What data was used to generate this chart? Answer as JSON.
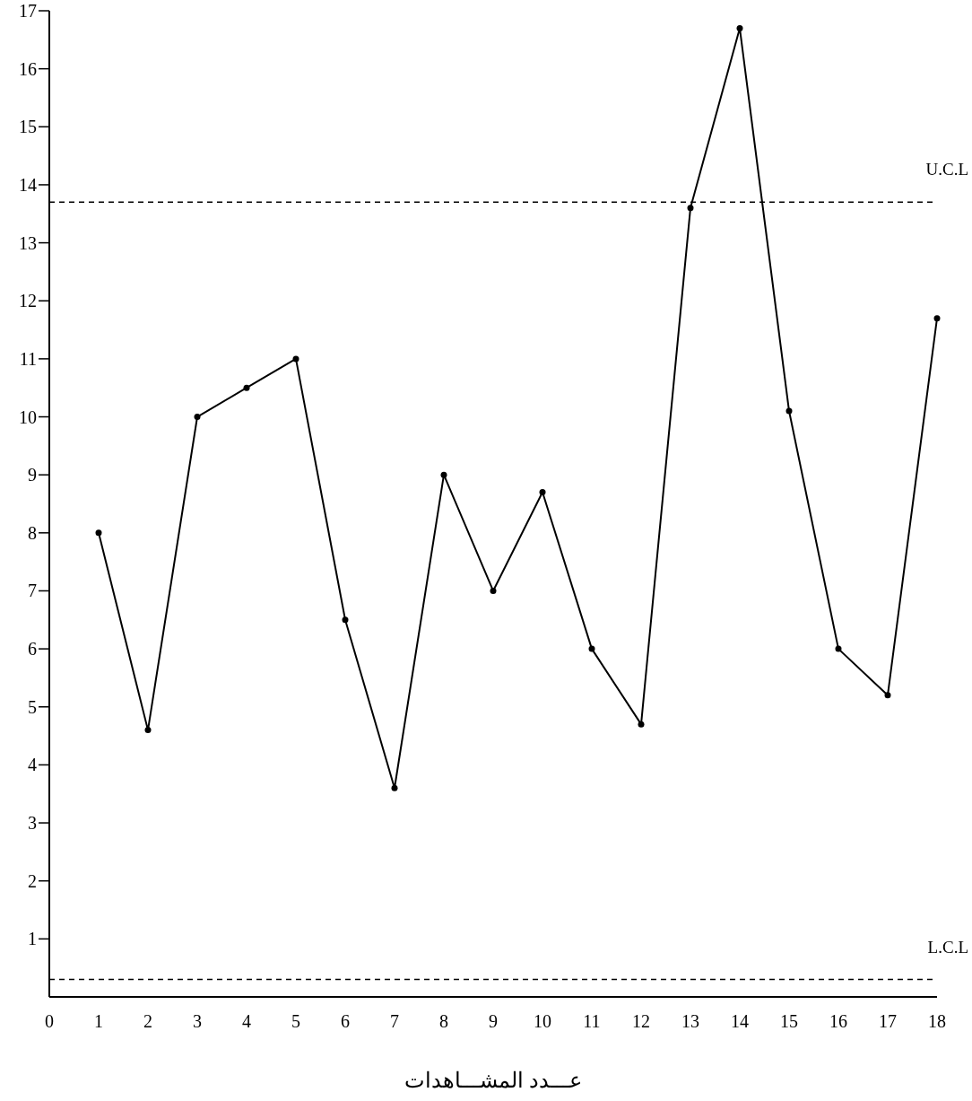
{
  "chart_data": {
    "type": "line",
    "xlabel": "عـــدد المشـــاهدات",
    "x": [
      1,
      2,
      3,
      4,
      5,
      6,
      7,
      8,
      9,
      10,
      11,
      12,
      13,
      14,
      15,
      16,
      17,
      18
    ],
    "series": [
      {
        "color": "#000000",
        "values": [
          8,
          4.6,
          10,
          10.5,
          11,
          6.5,
          3.6,
          9,
          7,
          8.7,
          6,
          4.7,
          13.6,
          16.7,
          10.1,
          6,
          5.2,
          11.7
        ]
      }
    ],
    "xlim": [
      0,
      18
    ],
    "xticks": [
      0,
      1,
      2,
      3,
      4,
      5,
      6,
      7,
      8,
      9,
      10,
      11,
      12,
      13,
      14,
      15,
      16,
      17,
      18
    ],
    "ylim": [
      0,
      17
    ],
    "yticks": [
      1,
      2,
      3,
      4,
      5,
      6,
      7,
      8,
      9,
      10,
      11,
      12,
      13,
      14,
      15,
      16,
      17
    ],
    "ref_lines": [
      {
        "axis": "y",
        "value": 13.7,
        "label": "U.C.L",
        "color": "#000000",
        "line_style": "dashed"
      },
      {
        "axis": "y",
        "value": 0.3,
        "label": "L.C.L",
        "color": "#000000",
        "line_style": "dashed"
      }
    ],
    "marker": "circle",
    "line_style": "solid",
    "grid": false
  }
}
